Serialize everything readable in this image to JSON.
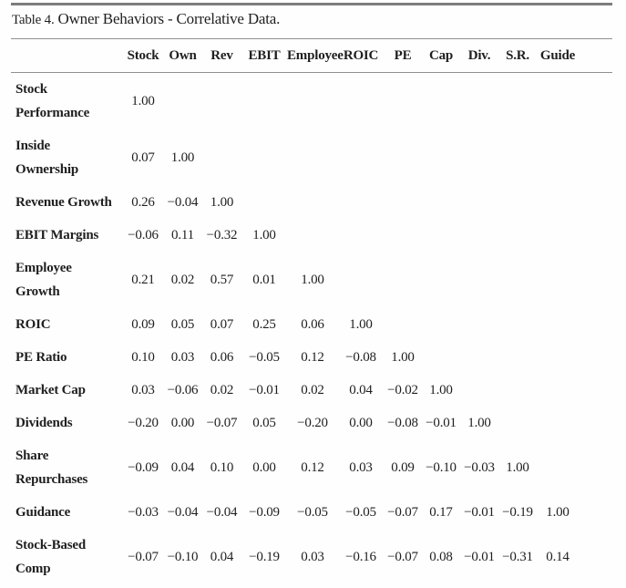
{
  "caption": {
    "label": "Table 4.",
    "title": "Owner Behaviors - Correlative Data."
  },
  "table": {
    "columns": [
      "Stock",
      "Own",
      "Rev",
      "EBIT",
      "Employee",
      "ROIC",
      "PE",
      "Cap",
      "Div.",
      "S.R.",
      "Guide"
    ],
    "rows": [
      {
        "label": "Stock Performance",
        "label_lines": [
          "Stock",
          "Performance"
        ],
        "values": [
          "1.00"
        ]
      },
      {
        "label": "Inside Ownership",
        "label_lines": [
          "Inside",
          "Ownership"
        ],
        "values": [
          "0.07",
          "1.00"
        ]
      },
      {
        "label": "Revenue Growth",
        "label_lines": [
          "Revenue Growth"
        ],
        "values": [
          "0.26",
          "−0.04",
          "1.00"
        ]
      },
      {
        "label": "EBIT Margins",
        "label_lines": [
          "EBIT Margins"
        ],
        "values": [
          "−0.06",
          "0.11",
          "−0.32",
          "1.00"
        ]
      },
      {
        "label": "Employee Growth",
        "label_lines": [
          "Employee",
          "Growth"
        ],
        "values": [
          "0.21",
          "0.02",
          "0.57",
          "0.01",
          "1.00"
        ]
      },
      {
        "label": "ROIC",
        "label_lines": [
          "ROIC"
        ],
        "values": [
          "0.09",
          "0.05",
          "0.07",
          "0.25",
          "0.06",
          "1.00"
        ]
      },
      {
        "label": "PE Ratio",
        "label_lines": [
          "PE Ratio"
        ],
        "values": [
          "0.10",
          "0.03",
          "0.06",
          "−0.05",
          "0.12",
          "−0.08",
          "1.00"
        ]
      },
      {
        "label": "Market Cap",
        "label_lines": [
          "Market Cap"
        ],
        "values": [
          "0.03",
          "−0.06",
          "0.02",
          "−0.01",
          "0.02",
          "0.04",
          "−0.02",
          "1.00"
        ]
      },
      {
        "label": "Dividends",
        "label_lines": [
          "Dividends"
        ],
        "values": [
          "−0.20",
          "0.00",
          "−0.07",
          "0.05",
          "−0.20",
          "0.00",
          "−0.08",
          "−0.01",
          "1.00"
        ]
      },
      {
        "label": "Share Repurchases",
        "label_lines": [
          "Share",
          "Repurchases"
        ],
        "values": [
          "−0.09",
          "0.04",
          "0.10",
          "0.00",
          "0.12",
          "0.03",
          "0.09",
          "−0.10",
          "−0.03",
          "1.00"
        ]
      },
      {
        "label": "Guidance",
        "label_lines": [
          "Guidance"
        ],
        "values": [
          "−0.03",
          "−0.04",
          "−0.04",
          "−0.09",
          "−0.05",
          "−0.05",
          "−0.07",
          "0.17",
          "−0.01",
          "−0.19",
          "1.00"
        ]
      },
      {
        "label": "Stock-Based Comp",
        "label_lines": [
          "Stock-Based",
          "Comp"
        ],
        "values": [
          "−0.07",
          "−0.10",
          "0.04",
          "−0.19",
          "0.03",
          "−0.16",
          "−0.07",
          "0.08",
          "−0.01",
          "−0.31",
          "0.14"
        ]
      }
    ]
  },
  "colors": {
    "text": "#1f1f1f",
    "rule_thick": "#7d7d7d",
    "rule_thin": "#8f8f8f",
    "background": "#fefefe"
  }
}
